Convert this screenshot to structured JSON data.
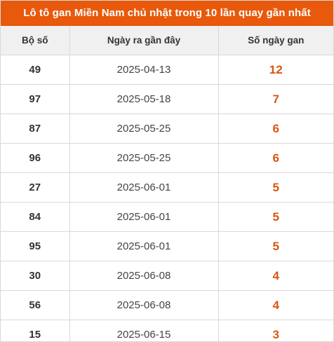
{
  "title": "Lô tô gan Miền Nam chủ nhật trong 10 lần quay gần nhất",
  "headers": [
    "Bộ số",
    "Ngày ra gần đây",
    "Số ngày gan"
  ],
  "colors": {
    "title_bg": "#e8590c",
    "header_bg": "#f0f0f0",
    "days_text": "#d9560f",
    "border": "#d8d8d8"
  },
  "rows": [
    {
      "number": "49",
      "date": "2025-04-13",
      "days": "12"
    },
    {
      "number": "97",
      "date": "2025-05-18",
      "days": "7"
    },
    {
      "number": "87",
      "date": "2025-05-25",
      "days": "6"
    },
    {
      "number": "96",
      "date": "2025-05-25",
      "days": "6"
    },
    {
      "number": "27",
      "date": "2025-06-01",
      "days": "5"
    },
    {
      "number": "84",
      "date": "2025-06-01",
      "days": "5"
    },
    {
      "number": "95",
      "date": "2025-06-01",
      "days": "5"
    },
    {
      "number": "30",
      "date": "2025-06-08",
      "days": "4"
    },
    {
      "number": "56",
      "date": "2025-06-08",
      "days": "4"
    },
    {
      "number": "15",
      "date": "2025-06-15",
      "days": "3"
    }
  ]
}
